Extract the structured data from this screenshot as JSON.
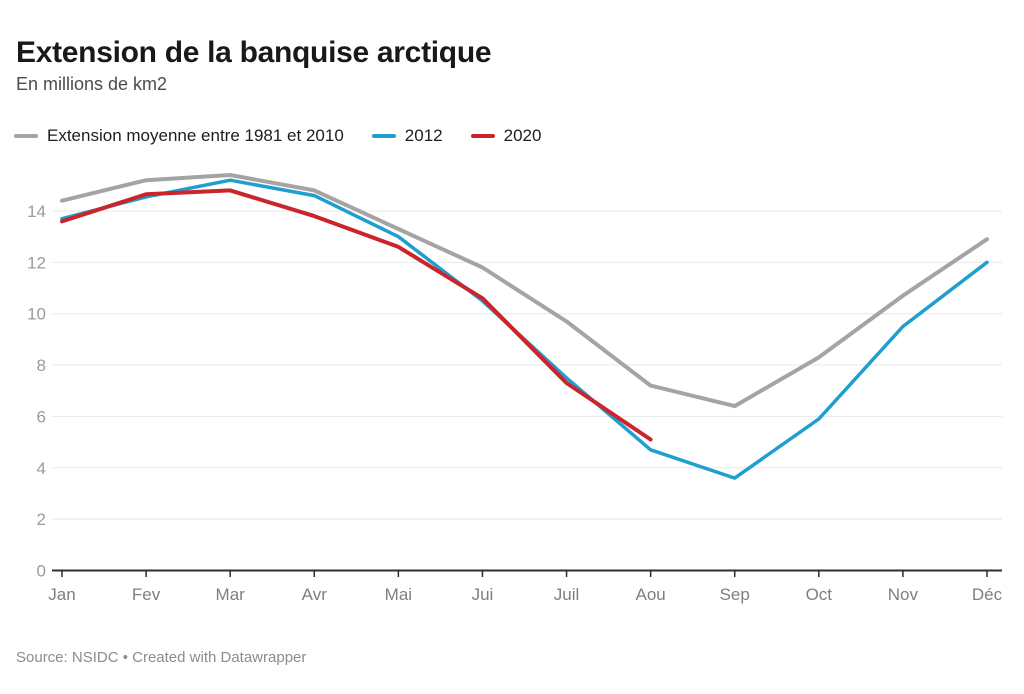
{
  "header": {
    "title": "Extension de la banquise arctique",
    "subtitle": "En millions de km2"
  },
  "footer": {
    "source": "Source: NSIDC • Created with Datawrapper"
  },
  "colors": {
    "average": "#a4a4a4",
    "y2012": "#1f9fd0",
    "y2020": "#c9252b",
    "grid": "#e8e8e8",
    "axis": "#2d2d2d",
    "x_tick_label": "#7f7f7f",
    "y_tick_label": "#9b9b9b"
  },
  "chart_data": {
    "type": "line",
    "title": "Extension de la banquise arctique",
    "subtitle": "En millions de km2",
    "xlabel": "",
    "ylabel": "En millions de km2",
    "categories": [
      "Jan",
      "Fev",
      "Mar",
      "Avr",
      "Mai",
      "Jui",
      "Juil",
      "Aou",
      "Sep",
      "Oct",
      "Nov",
      "Déc"
    ],
    "series": [
      {
        "name": "Extension moyenne entre 1981 et 2010",
        "color": "#a4a4a4",
        "values": [
          14.4,
          15.2,
          15.4,
          14.8,
          13.3,
          11.8,
          9.7,
          7.2,
          6.4,
          8.3,
          10.7,
          12.9
        ]
      },
      {
        "name": "2012",
        "color": "#1f9fd0",
        "values": [
          13.7,
          14.55,
          15.2,
          14.6,
          13.0,
          10.5,
          7.5,
          4.7,
          3.6,
          5.9,
          9.5,
          12.0
        ]
      },
      {
        "name": "2020",
        "color": "#c9252b",
        "values": [
          13.6,
          14.65,
          14.8,
          13.8,
          12.6,
          10.6,
          7.3,
          5.1,
          null,
          null,
          null,
          null
        ]
      }
    ],
    "yticks": [
      0,
      2,
      4,
      6,
      8,
      10,
      12,
      14
    ],
    "ylim": [
      0,
      15.8
    ],
    "grid": "horizontal",
    "legend_position": "top"
  }
}
